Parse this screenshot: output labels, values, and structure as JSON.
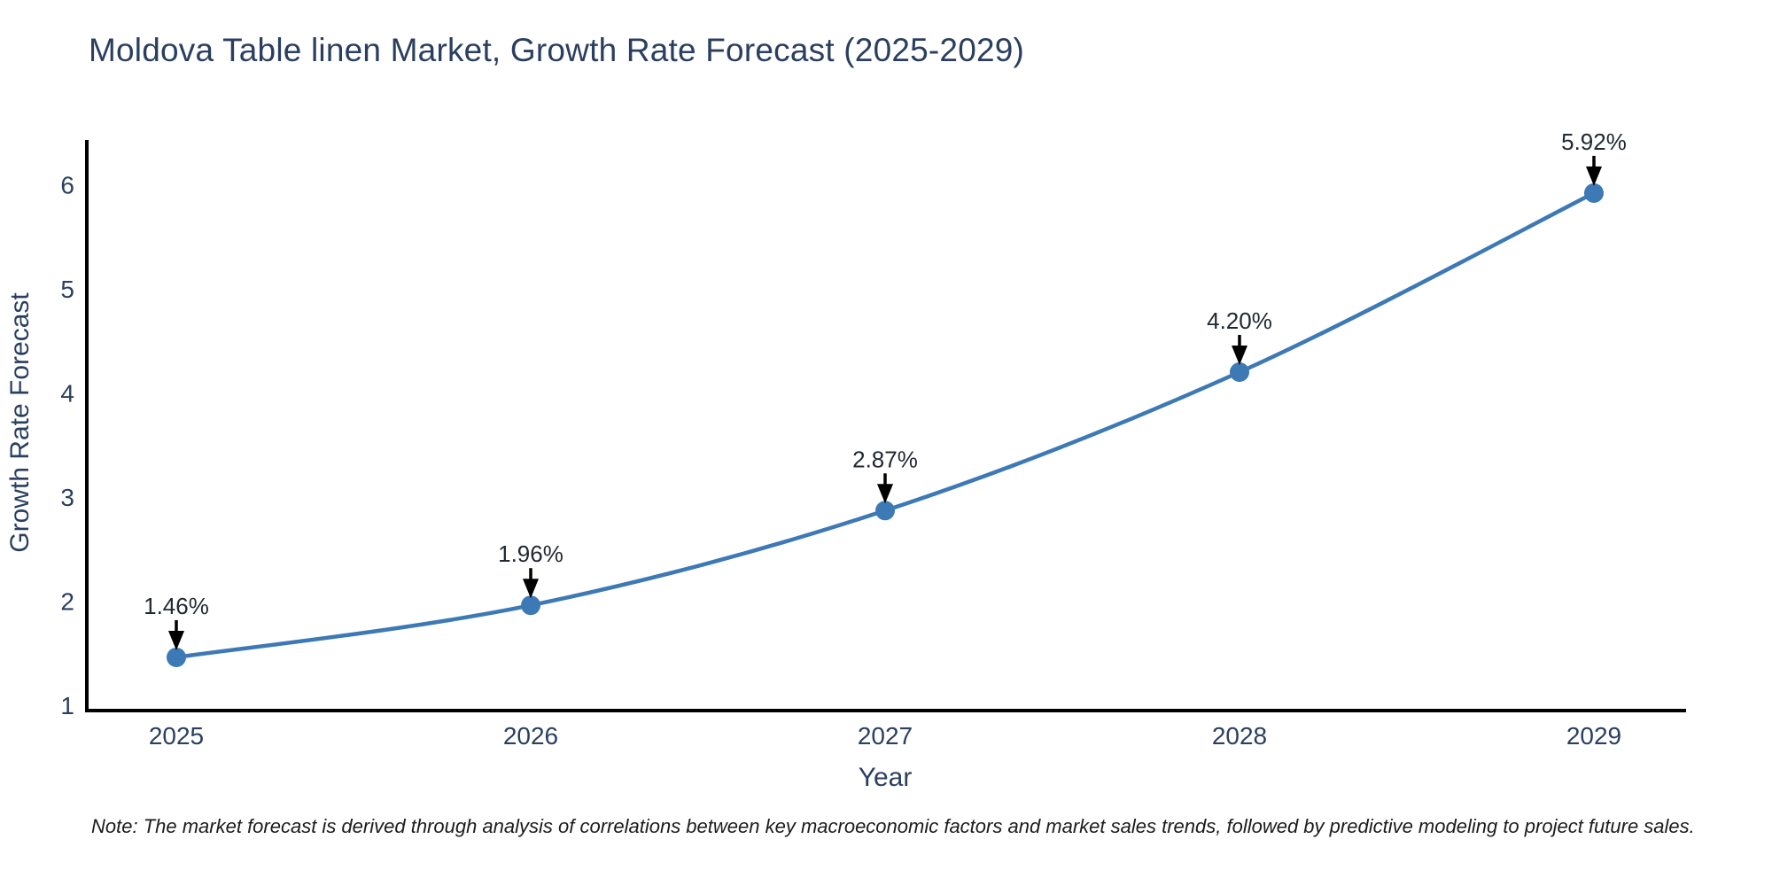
{
  "title": {
    "text": "Moldova Table linen Market, Growth Rate Forecast (2025-2029)"
  },
  "note": {
    "text": "Note: The market forecast is derived through analysis of correlations between key macroeconomic factors and market sales trends, followed by predictive modeling to project future sales."
  },
  "chart_data": {
    "type": "line",
    "title": "Moldova Table linen Market, Growth Rate Forecast (2025-2029)",
    "xlabel": "Year",
    "ylabel": "Growth Rate Forecast",
    "x": [
      2025,
      2026,
      2027,
      2028,
      2029
    ],
    "x_tick_labels": [
      "2025",
      "2026",
      "2027",
      "2028",
      "2029"
    ],
    "y_ticks": [
      1,
      2,
      3,
      4,
      5,
      6
    ],
    "series": [
      {
        "name": "Growth Rate Forecast",
        "values": [
          1.46,
          1.96,
          2.87,
          4.2,
          5.92
        ]
      }
    ],
    "point_labels": [
      "1.46%",
      "1.96%",
      "2.87%",
      "4.20%",
      "5.92%"
    ],
    "xlim": [
      2024.75,
      2029.27
    ],
    "ylim": [
      1,
      6.43
    ],
    "grid": false,
    "legend_position": "none",
    "marker_style": "circle",
    "annotation_arrows": "down",
    "colors": {
      "line": "#3d79b5",
      "marker": "#3d79b5",
      "axis": "#000000",
      "tick_text": "#2a3f5f",
      "axis_title_text": "#2a3f5f",
      "title_text": "#2a3f5f",
      "annotation_text": "#222831",
      "arrow": "#000000",
      "background": "#ffffff"
    }
  }
}
